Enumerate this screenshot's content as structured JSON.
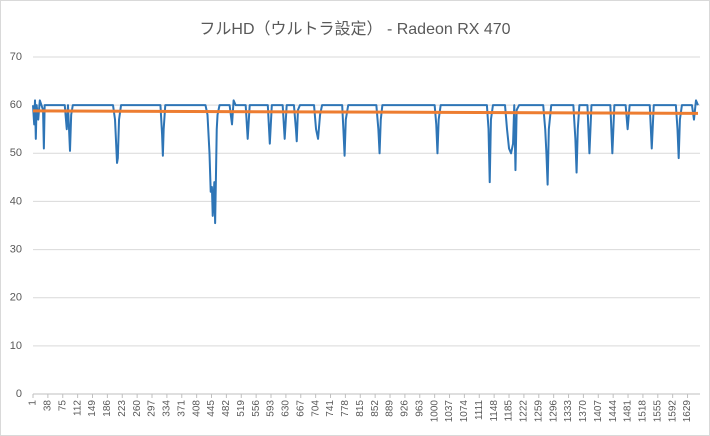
{
  "chart_data": {
    "type": "line",
    "title": "フルHD（ウルトラ設定） - Radeon RX 470",
    "xlim": [
      1,
      1660
    ],
    "xticks": [
      1,
      38,
      75,
      112,
      149,
      186,
      223,
      260,
      297,
      334,
      371,
      408,
      445,
      482,
      519,
      556,
      593,
      630,
      667,
      704,
      741,
      778,
      815,
      852,
      889,
      926,
      963,
      1000,
      1037,
      1074,
      1111,
      1148,
      1185,
      1222,
      1259,
      1296,
      1333,
      1370,
      1407,
      1444,
      1481,
      1518,
      1555,
      1592,
      1629
    ],
    "ylim": [
      0,
      70
    ],
    "yticks": [
      0,
      10,
      20,
      30,
      40,
      50,
      60,
      70
    ],
    "grid": true,
    "series": [
      {
        "color": "#2e75b6",
        "x": [
          1,
          4,
          6,
          8,
          10,
          14,
          18,
          22,
          26,
          28,
          30,
          40,
          60,
          80,
          85,
          88,
          93,
          96,
          100,
          120,
          200,
          205,
          210,
          212,
          215,
          220,
          300,
          318,
          322,
          324,
          326,
          330,
          420,
          430,
          435,
          440,
          443,
          446,
          448,
          450,
          452,
          454,
          456,
          458,
          460,
          465,
          480,
          490,
          496,
          500,
          505,
          530,
          535,
          540,
          585,
          590,
          595,
          622,
          627,
          632,
          650,
          655,
          657,
          660,
          665,
          700,
          705,
          710,
          715,
          720,
          770,
          773,
          776,
          779,
          785,
          855,
          860,
          863,
          866,
          870,
          1000,
          1004,
          1007,
          1010,
          1015,
          1130,
          1134,
          1137,
          1140,
          1145,
          1175,
          1180,
          1185,
          1190,
          1195,
          1198,
          1201,
          1204,
          1210,
          1270,
          1275,
          1278,
          1281,
          1284,
          1290,
          1345,
          1350,
          1353,
          1356,
          1360,
          1380,
          1385,
          1390,
          1437,
          1442,
          1447,
          1475,
          1480,
          1485,
          1535,
          1540,
          1545,
          1600,
          1604,
          1607,
          1610,
          1615,
          1640,
          1645,
          1650,
          1655
        ],
        "values": [
          60,
          56,
          61,
          53,
          60,
          57,
          61,
          60,
          59,
          51,
          60,
          60,
          60,
          60,
          55,
          60,
          50.5,
          58,
          60,
          60,
          60,
          57,
          48,
          49,
          57,
          60,
          60,
          60,
          54,
          49.5,
          55,
          60,
          60,
          60,
          58,
          50,
          42,
          43,
          37,
          40,
          44,
          35.5,
          45,
          55,
          58,
          60,
          60,
          60,
          56,
          61,
          60,
          60,
          53,
          60,
          60,
          52,
          60,
          60,
          53,
          60,
          60,
          55,
          52.5,
          59,
          60,
          60,
          55,
          53,
          58,
          60,
          60,
          55,
          49.5,
          57,
          60,
          60,
          55,
          50,
          57,
          60,
          60,
          56,
          50,
          57,
          60,
          60,
          55,
          44,
          57,
          60,
          60,
          55,
          51,
          50,
          52,
          60,
          46.5,
          59,
          60,
          60,
          55,
          50,
          43.5,
          55,
          60,
          60,
          53,
          46,
          55,
          60,
          60,
          50,
          60,
          60,
          50,
          60,
          60,
          55,
          60,
          60,
          51,
          60,
          60,
          55,
          49,
          57,
          60,
          60,
          57,
          61,
          60
        ]
      },
      {
        "color": "#ed7d31",
        "x": [
          1,
          1655
        ],
        "values": [
          58.8,
          58.3
        ]
      }
    ]
  }
}
